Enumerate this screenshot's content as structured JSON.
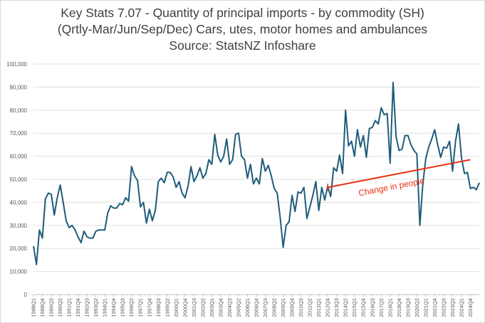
{
  "chart_data": {
    "type": "line",
    "title": [
      "Key Stats 7.07 - Quantity of principal imports - by commodity (SH)",
      "(Qrtly-Mar/Jun/Sep/Dec) Cars, utes, motor homes and ambulances",
      "Source: StatsNZ Infoshare"
    ],
    "xlabel": "",
    "ylabel": "",
    "ylim": [
      0,
      100000
    ],
    "yticks": [
      0,
      10000,
      20000,
      30000,
      40000,
      50000,
      60000,
      70000,
      80000,
      90000,
      100000
    ],
    "ytick_labels": [
      "0",
      "10,000",
      "20,000",
      "30,000",
      "40,000",
      "50,000",
      "60,000",
      "70,000",
      "80,000",
      "90,000",
      "100,000"
    ],
    "xtick_labels": [
      "1988Q1",
      "1988Q4",
      "1989Q3",
      "1990Q2",
      "1991Q1",
      "1991Q4",
      "1992Q3",
      "1993Q2",
      "1994Q1",
      "1994Q4",
      "1995Q3",
      "1996Q2",
      "1997Q1",
      "1997Q4",
      "1998Q3",
      "1999Q2",
      "2000Q1",
      "2000Q4",
      "2001Q3",
      "2002Q2",
      "2003Q1",
      "2003Q4",
      "2004Q3",
      "2005Q2",
      "2006Q1",
      "2006Q4",
      "2007Q3",
      "2008Q2",
      "2009Q1",
      "2009Q4",
      "2010Q3",
      "2011Q2",
      "2012Q1",
      "2012Q4",
      "2013Q3",
      "2014Q2",
      "2015Q1",
      "2015Q4",
      "2016Q3",
      "2017Q2",
      "2018Q1",
      "2018Q4",
      "2019Q3",
      "2020Q2",
      "2021Q1",
      "2021Q4",
      "2022Q3",
      "2023Q2",
      "2024Q1",
      "2024Q4"
    ],
    "grid": true,
    "series": [
      {
        "start": "1988Q1",
        "color": "#1f5c7a",
        "values": [
          21000,
          13000,
          28000,
          24500,
          41500,
          44000,
          43500,
          34500,
          42000,
          47500,
          40000,
          32000,
          29000,
          30000,
          28000,
          25000,
          22500,
          27500,
          25000,
          24500,
          24500,
          27500,
          28000,
          28000,
          28000,
          35500,
          38500,
          37500,
          37500,
          39500,
          39000,
          42000,
          40500,
          55500,
          51500,
          49500,
          38000,
          40000,
          31000,
          37000,
          32000,
          36500,
          49000,
          50500,
          48500,
          53000,
          53000,
          51000,
          46500,
          49000,
          44000,
          42000,
          47000,
          55500,
          49000,
          51500,
          55000,
          50500,
          52500,
          58500,
          56500,
          69500,
          60500,
          57500,
          60000,
          67500,
          56500,
          58500,
          69500,
          70000,
          60000,
          58500,
          50500,
          56500,
          48000,
          50500,
          48000,
          59000,
          53500,
          56000,
          51500,
          46000,
          44000,
          33500,
          20500,
          30000,
          31500,
          43000,
          36000,
          44500,
          44000,
          46500,
          33000,
          38000,
          43000,
          49000,
          36500,
          46500,
          41000,
          47000,
          42500,
          55000,
          53500,
          60500,
          52500,
          80000,
          64500,
          66500,
          60000,
          71500,
          64000,
          69000,
          59500,
          72000,
          72500,
          75500,
          74000,
          81000,
          78000,
          78500,
          57000,
          92000,
          68500,
          62500,
          63000,
          69000,
          69000,
          65000,
          62500,
          61000,
          30000,
          48000,
          59000,
          64000,
          67500,
          71500,
          65000,
          59500,
          64000,
          63500,
          66500,
          53500,
          66500,
          74000,
          59500,
          52500,
          53000,
          46000,
          46500,
          45500,
          48500
        ]
      }
    ],
    "trendline": {
      "label": "Change in people",
      "color": "#e53312",
      "from": {
        "x": "2012Q4",
        "y": 46500
      },
      "to": {
        "x": "2024Q4",
        "y": 58500
      }
    }
  }
}
